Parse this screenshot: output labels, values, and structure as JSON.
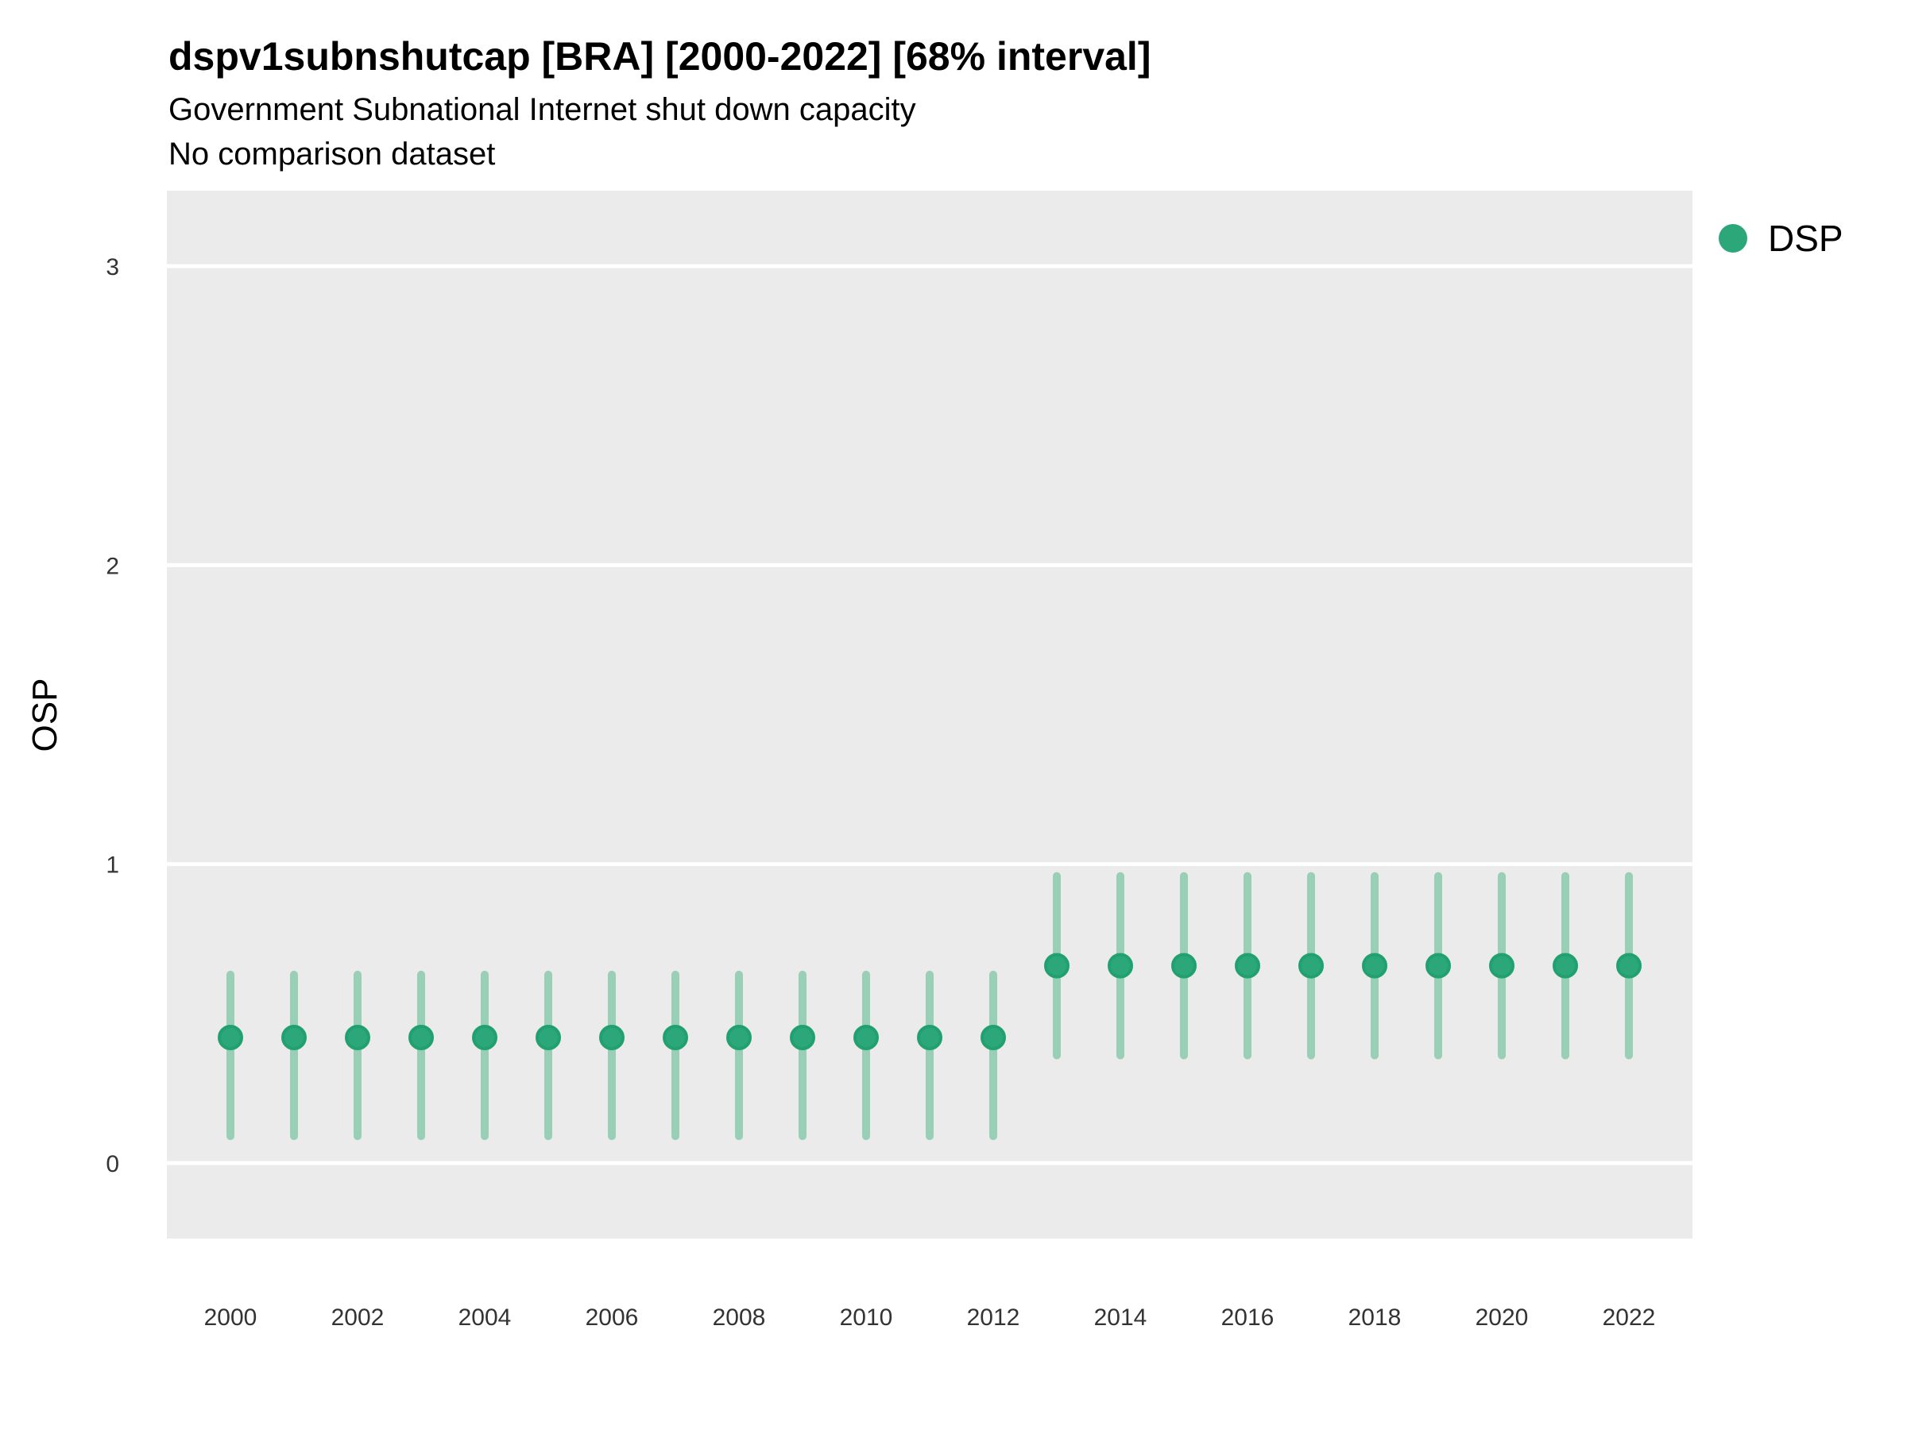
{
  "chart_data": {
    "type": "pointrange",
    "title": "dspv1subnshutcap [BRA] [2000-2022] [68% interval]",
    "subtitle": "Government Subnational Internet shut down capacity",
    "note": "No comparison dataset",
    "ylabel": "OSP",
    "legend_label": "DSP",
    "xlim": [
      1999,
      2023
    ],
    "ylim": [
      -0.25,
      3.25
    ],
    "yticks": [
      0,
      1,
      2,
      3
    ],
    "xticks": [
      2000,
      2002,
      2004,
      2006,
      2008,
      2010,
      2012,
      2014,
      2016,
      2018,
      2020,
      2022
    ],
    "grid": "horizontal-major-only",
    "legend_position": "right-top",
    "colors": {
      "point": "#2CA77A",
      "point_stroke": "#21A070",
      "interval": "#99CFB6",
      "panel_bg": "#EBEBEB",
      "gridline": "#FFFFFF",
      "tick_text": "#333333",
      "text": "#000000"
    },
    "series": [
      {
        "name": "DSP",
        "points": [
          {
            "year": 2000,
            "lo": 0.09,
            "mid": 0.42,
            "hi": 0.63
          },
          {
            "year": 2001,
            "lo": 0.09,
            "mid": 0.42,
            "hi": 0.63
          },
          {
            "year": 2002,
            "lo": 0.09,
            "mid": 0.42,
            "hi": 0.63
          },
          {
            "year": 2003,
            "lo": 0.09,
            "mid": 0.42,
            "hi": 0.63
          },
          {
            "year": 2004,
            "lo": 0.09,
            "mid": 0.42,
            "hi": 0.63
          },
          {
            "year": 2005,
            "lo": 0.09,
            "mid": 0.42,
            "hi": 0.63
          },
          {
            "year": 2006,
            "lo": 0.09,
            "mid": 0.42,
            "hi": 0.63
          },
          {
            "year": 2007,
            "lo": 0.09,
            "mid": 0.42,
            "hi": 0.63
          },
          {
            "year": 2008,
            "lo": 0.09,
            "mid": 0.42,
            "hi": 0.63
          },
          {
            "year": 2009,
            "lo": 0.09,
            "mid": 0.42,
            "hi": 0.63
          },
          {
            "year": 2010,
            "lo": 0.09,
            "mid": 0.42,
            "hi": 0.63
          },
          {
            "year": 2011,
            "lo": 0.09,
            "mid": 0.42,
            "hi": 0.63
          },
          {
            "year": 2012,
            "lo": 0.09,
            "mid": 0.42,
            "hi": 0.63
          },
          {
            "year": 2013,
            "lo": 0.36,
            "mid": 0.66,
            "hi": 0.96
          },
          {
            "year": 2014,
            "lo": 0.36,
            "mid": 0.66,
            "hi": 0.96
          },
          {
            "year": 2015,
            "lo": 0.36,
            "mid": 0.66,
            "hi": 0.96
          },
          {
            "year": 2016,
            "lo": 0.36,
            "mid": 0.66,
            "hi": 0.96
          },
          {
            "year": 2017,
            "lo": 0.36,
            "mid": 0.66,
            "hi": 0.96
          },
          {
            "year": 2018,
            "lo": 0.36,
            "mid": 0.66,
            "hi": 0.96
          },
          {
            "year": 2019,
            "lo": 0.36,
            "mid": 0.66,
            "hi": 0.96
          },
          {
            "year": 2020,
            "lo": 0.36,
            "mid": 0.66,
            "hi": 0.96
          },
          {
            "year": 2021,
            "lo": 0.36,
            "mid": 0.66,
            "hi": 0.96
          },
          {
            "year": 2022,
            "lo": 0.36,
            "mid": 0.66,
            "hi": 0.96
          }
        ]
      }
    ]
  }
}
